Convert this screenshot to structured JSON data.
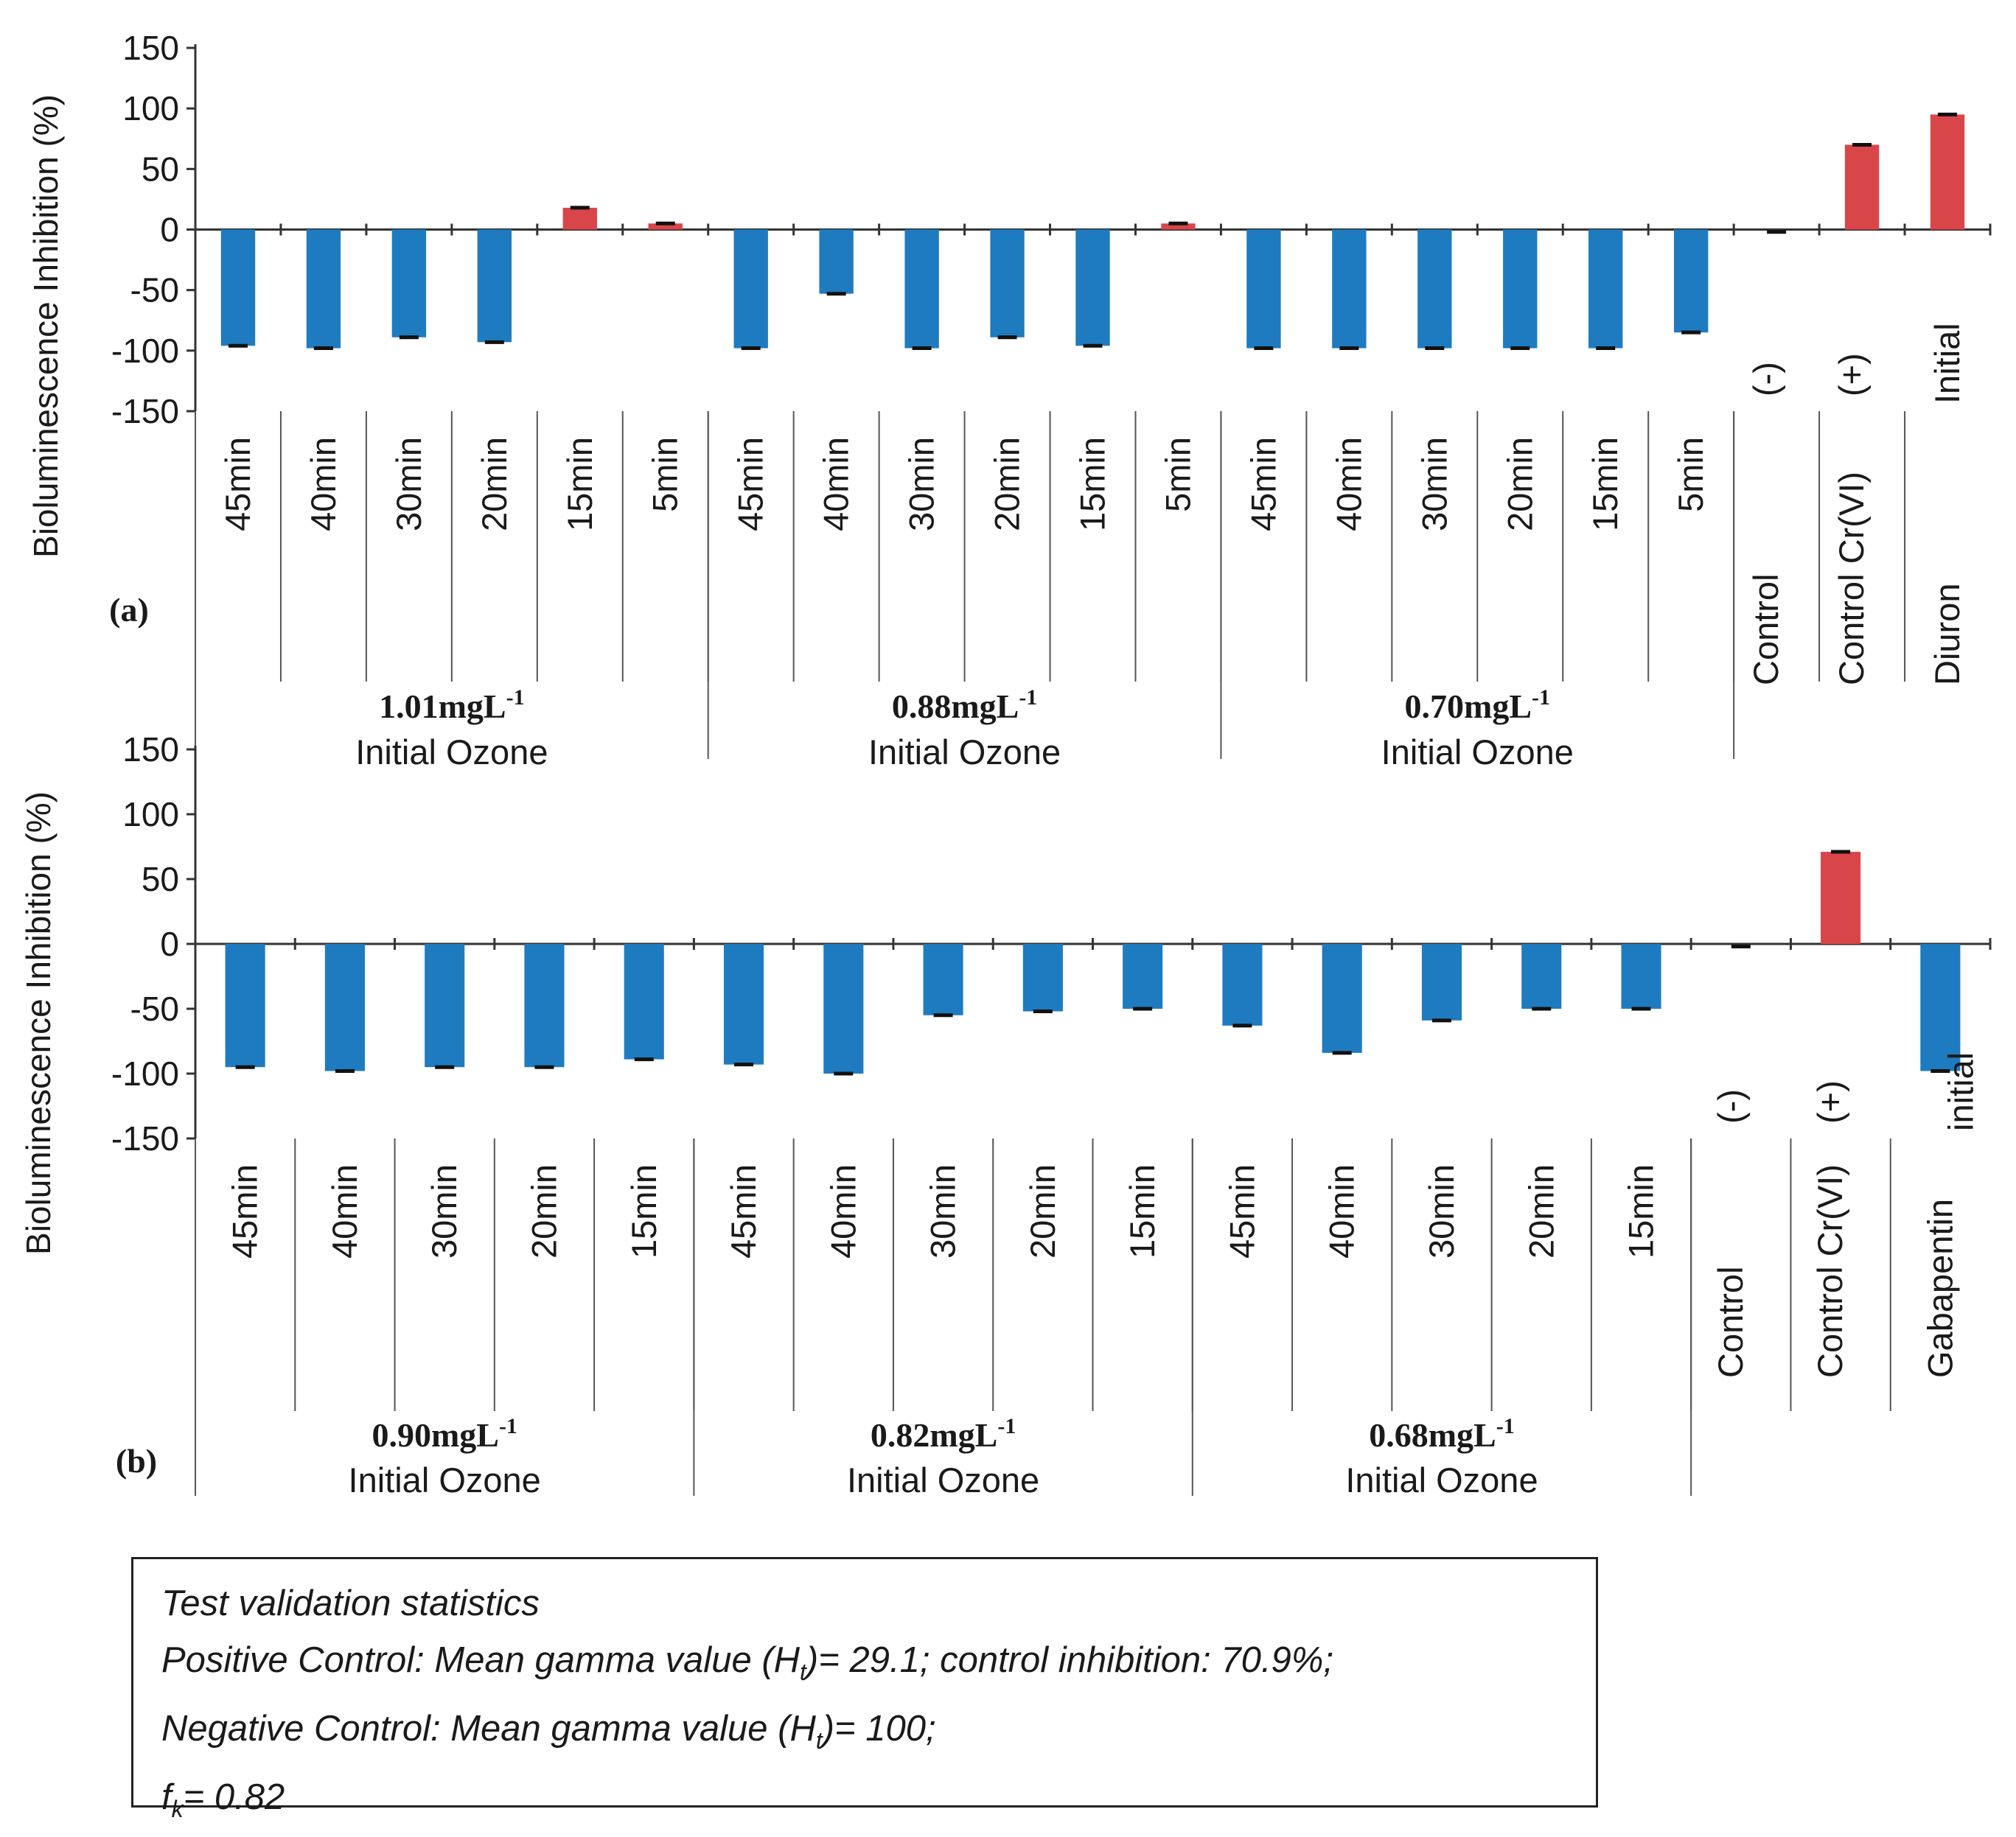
{
  "chart_data": [
    {
      "type": "bar",
      "panel_label": "(a)",
      "ylabel": "Bioluminescence Inhibition (%)",
      "yticks": [
        "150",
        "100",
        "50",
        "0",
        "-50",
        "-100",
        "-150"
      ],
      "ylim": [
        -150,
        150
      ],
      "categories": [
        "45min",
        "40min",
        "30min",
        "20min",
        "15min",
        "5min",
        "45min",
        "40min",
        "30min",
        "20min",
        "15min",
        "5min",
        "45min",
        "40min",
        "30min",
        "20min",
        "15min",
        "5min",
        "Control (-)",
        "Control Cr(VI) (+)",
        "Diuron Initial"
      ],
      "values": [
        -96,
        -98,
        -89,
        -93,
        18,
        5,
        -98,
        -53,
        -98,
        -89,
        -96,
        5,
        -98,
        -98,
        -98,
        -98,
        -98,
        -85,
        -2,
        70,
        95
      ],
      "groups": [
        {
          "concentration": "1.01mgL",
          "superscript": "-1",
          "label": "Initial Ozone"
        },
        {
          "concentration": "0.88mgL",
          "superscript": "-1",
          "label": "Initial Ozone"
        },
        {
          "concentration": "0.70mgL",
          "superscript": "-1",
          "label": "Initial Ozone"
        }
      ],
      "colors": {
        "negative": "#1f7bbf",
        "positive": "#d9464a"
      }
    },
    {
      "type": "bar",
      "panel_label": "(b)",
      "ylabel": "Bioluminescence Inhibition (%)",
      "yticks": [
        "150",
        "100",
        "50",
        "0",
        "-50",
        "-100",
        "-150"
      ],
      "ylim": [
        -150,
        150
      ],
      "categories": [
        "45min",
        "40min",
        "30min",
        "20min",
        "15min",
        "45min",
        "40min",
        "30min",
        "20min",
        "15min",
        "45min",
        "40min",
        "30min",
        "20min",
        "15min",
        "Control (-)",
        "Control Cr(VI) (+)",
        "Gabapentin initial"
      ],
      "values": [
        -95,
        -98,
        -95,
        -95,
        -89,
        -93,
        -100,
        -55,
        -52,
        -50,
        -63,
        -84,
        -59,
        -50,
        -50,
        -2,
        71,
        -98
      ],
      "groups": [
        {
          "concentration": "0.90mgL",
          "superscript": "-1",
          "label": "Initial Ozone"
        },
        {
          "concentration": "0.82mgL",
          "superscript": "-1",
          "label": "Initial Ozone"
        },
        {
          "concentration": "0.68mgL",
          "superscript": "-1",
          "label": "Initial Ozone"
        }
      ],
      "colors": {
        "negative": "#1f7bbf",
        "positive": "#d9464a"
      }
    }
  ],
  "stats": {
    "title": "Test validation statistics",
    "positive_prefix": "Positive Control: Mean gamma value (H",
    "positive_sub": "t",
    "positive_suffix": ")= 29.1; control inhibition: 70.9%;",
    "negative_prefix": "Negative Control: Mean gamma value (H",
    "negative_sub": "t",
    "negative_suffix": ")= 100;",
    "fk_prefix": "f",
    "fk_sub": "k",
    "fk_suffix": "= 0.82"
  }
}
